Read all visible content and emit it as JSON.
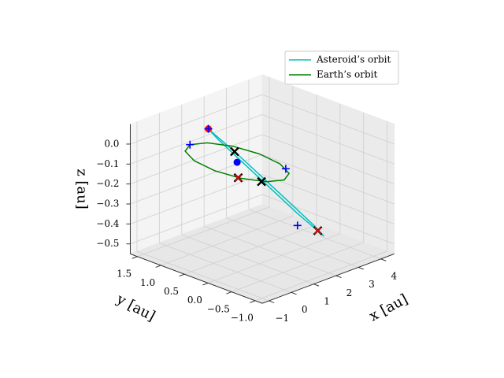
{
  "chart_data": {
    "type": "line3d",
    "xlabel": "x [au]",
    "ylabel": "y [au]",
    "zlabel": "z [au]",
    "elev": 22,
    "azim": -135,
    "xlim": [
      -1.3,
      4.6
    ],
    "ylim": [
      -1.15,
      1.65
    ],
    "zlim": [
      -0.55,
      0.1
    ],
    "xticks": [
      {
        "value": -1,
        "label": "−1"
      },
      0,
      1,
      2,
      3,
      4
    ],
    "yticks": [
      {
        "value": -1,
        "label": "−1.0"
      },
      {
        "value": -0.5,
        "label": "−0.5"
      },
      {
        "value": 0,
        "label": "0.0"
      },
      {
        "value": 0.5,
        "label": "0.5"
      },
      {
        "value": 1,
        "label": "1.0"
      },
      {
        "value": 1.5,
        "label": "1.5"
      }
    ],
    "zticks": [
      {
        "value": -0.5,
        "label": "−0.5"
      },
      {
        "value": -0.4,
        "label": "−0.4"
      },
      {
        "value": -0.3,
        "label": "−0.3"
      },
      {
        "value": -0.2,
        "label": "−0.2"
      },
      {
        "value": -0.1,
        "label": "−0.1"
      },
      {
        "value": 0,
        "label": "0.0"
      }
    ],
    "grid": true,
    "legend": "upper right",
    "series": [
      {
        "name": "Asteroid’s orbit",
        "color": "#00bfbf",
        "x": [
          0.4,
          0.57,
          0.94,
          1.43,
          1.89,
          2.21,
          2.3,
          2.13,
          1.75,
          1.27,
          0.81,
          0.49,
          0.4
        ],
        "y": [
          0.8,
          0.75,
          0.5,
          0.125,
          -0.28,
          -0.6,
          -0.75,
          -0.7,
          -0.45,
          -0.075,
          0.33,
          0.65,
          0.8
        ],
        "z": [
          0.08,
          0.05,
          -0.03,
          -0.15,
          -0.27,
          -0.36,
          -0.4,
          -0.37,
          -0.29,
          -0.17,
          -0.05,
          0.04,
          0.08
        ]
      },
      {
        "name": "Earth’s orbit",
        "color": "#008000",
        "x": [
          1,
          0.866,
          0.5,
          0,
          -0.5,
          -0.866,
          -1,
          -0.866,
          -0.5,
          0,
          0.5,
          0.866,
          1
        ],
        "y": [
          0,
          0.5,
          0.866,
          1,
          0.866,
          0.5,
          0,
          -0.5,
          -0.866,
          -1,
          -0.866,
          -0.5,
          0
        ],
        "z": [
          0,
          0,
          0,
          0,
          0,
          0,
          0,
          0,
          0,
          0,
          0,
          0,
          0
        ]
      }
    ],
    "points": [
      {
        "marker": "o",
        "color": "#0000ff",
        "x": [
          0
        ],
        "y": [
          0
        ],
        "z": [
          0
        ]
      },
      {
        "marker": "o",
        "color": "#ff0000",
        "x": [
          0.4
        ],
        "y": [
          0.8
        ],
        "z": [
          0.08
        ]
      },
      {
        "marker": "+",
        "color": "#0000ff",
        "x": [
          0.4,
          0,
          0.7,
          1.75
        ],
        "y": [
          0.8,
          1,
          -0.7,
          -0.45
        ],
        "z": [
          0.08,
          0,
          0,
          -0.35
        ]
      },
      {
        "marker": "x",
        "color": "#ff0000",
        "edgecolor": "#000000",
        "x": [
          -0.9,
          2.13
        ],
        "y": [
          -0.45,
          -0.7
        ],
        "z": [
          0,
          -0.37
        ]
      },
      {
        "marker": "X",
        "color": "#000000",
        "x": [
          0.94,
          1.3
        ],
        "y": [
          0.5,
          0.1
        ],
        "z": [
          -0.03,
          -0.16
        ]
      }
    ]
  }
}
